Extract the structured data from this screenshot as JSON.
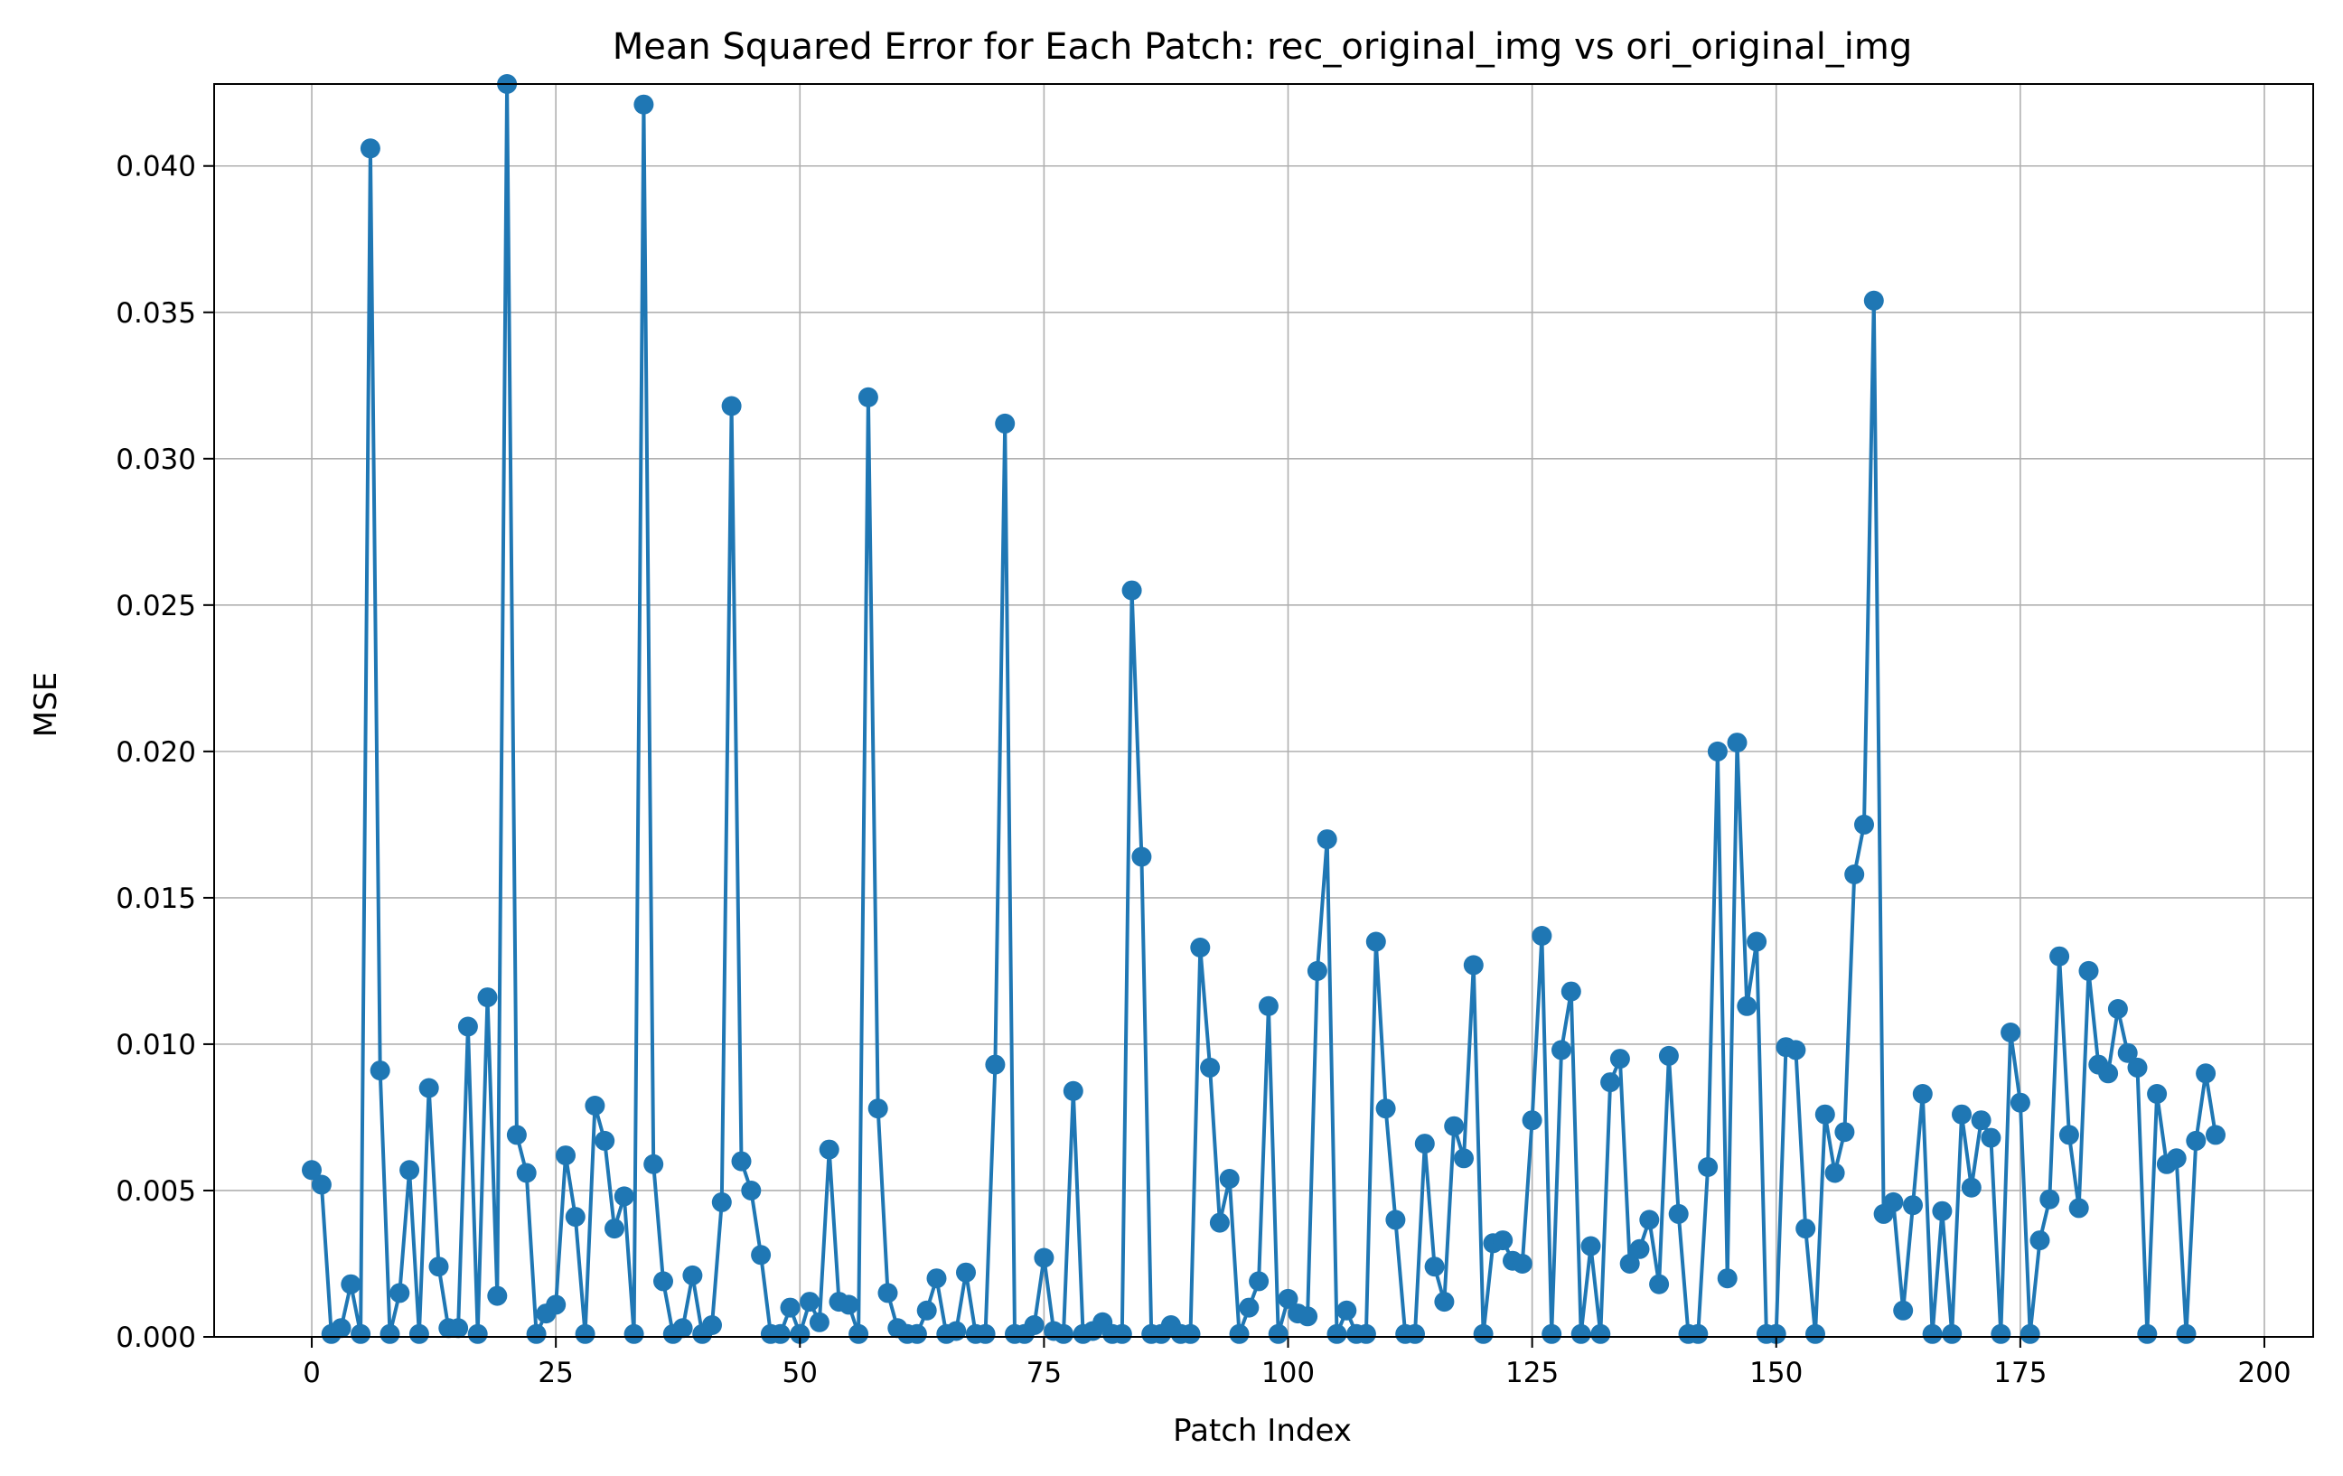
{
  "chart_data": {
    "type": "line",
    "title": "Mean Squared Error for Each Patch: rec_original_img vs ori_original_img",
    "xlabel": "Patch Index",
    "ylabel": "MSE",
    "xlim": [
      -10,
      205
    ],
    "ylim": [
      0,
      0.0428
    ],
    "xticks": [
      0,
      25,
      50,
      75,
      100,
      125,
      150,
      175,
      200
    ],
    "xtick_labels": [
      "0",
      "25",
      "50",
      "75",
      "100",
      "125",
      "150",
      "175",
      "200"
    ],
    "yticks": [
      0,
      0.005,
      0.01,
      0.015,
      0.02,
      0.025,
      0.03,
      0.035,
      0.04
    ],
    "ytick_labels": [
      "0.000",
      "0.005",
      "0.010",
      "0.015",
      "0.020",
      "0.025",
      "0.030",
      "0.035",
      "0.040"
    ],
    "grid": true,
    "marker": "circle",
    "color": "#1f77b4",
    "series": [
      {
        "values": [
          0.0057,
          0.0052,
          0.0001,
          0.0003,
          0.0018,
          0.0001,
          0.0406,
          0.0091,
          0.0001,
          0.0015,
          0.0057,
          0.0001,
          0.0085,
          0.0024,
          0.0003,
          0.0003,
          0.0106,
          0.0001,
          0.0116,
          0.0014,
          0.0428,
          0.0069,
          0.0056,
          0.0001,
          0.0008,
          0.0011,
          0.0062,
          0.0041,
          0.0001,
          0.0079,
          0.0067,
          0.0037,
          0.0048,
          0.0001,
          0.0421,
          0.0059,
          0.0019,
          0.0001,
          0.0003,
          0.0021,
          0.0001,
          0.0004,
          0.0046,
          0.0318,
          0.006,
          0.005,
          0.0028,
          0.0001,
          0.0001,
          0.001,
          0.0001,
          0.0012,
          0.0005,
          0.0064,
          0.0012,
          0.0011,
          0.0001,
          0.0321,
          0.0078,
          0.0015,
          0.0003,
          0.0001,
          0.0001,
          0.0009,
          0.002,
          0.0001,
          0.0002,
          0.0022,
          0.0001,
          0.0001,
          0.0093,
          0.0312,
          0.0001,
          0.0001,
          0.0004,
          0.0027,
          0.0002,
          0.0001,
          0.0084,
          0.0001,
          0.0002,
          0.0005,
          0.0001,
          0.0001,
          0.0255,
          0.0164,
          0.0001,
          0.0001,
          0.0004,
          0.0001,
          0.0001,
          0.0133,
          0.0092,
          0.0039,
          0.0054,
          0.0001,
          0.001,
          0.0019,
          0.0113,
          0.0001,
          0.0013,
          0.0008,
          0.0007,
          0.0125,
          0.017,
          0.0001,
          0.0009,
          0.0001,
          0.0001,
          0.0135,
          0.0078,
          0.004,
          0.0001,
          0.0001,
          0.0066,
          0.0024,
          0.0012,
          0.0072,
          0.0061,
          0.0127,
          0.0001,
          0.0032,
          0.0033,
          0.0026,
          0.0025,
          0.0074,
          0.0137,
          0.0001,
          0.0098,
          0.0118,
          0.0001,
          0.0031,
          0.0001,
          0.0087,
          0.0095,
          0.0025,
          0.003,
          0.004,
          0.0018,
          0.0096,
          0.0042,
          0.0001,
          0.0001,
          0.0058,
          0.02,
          0.002,
          0.0203,
          0.0113,
          0.0135,
          0.0001,
          0.0001,
          0.0099,
          0.0098,
          0.0037,
          0.0001,
          0.0076,
          0.0056,
          0.007,
          0.0158,
          0.0175,
          0.0354,
          0.0042,
          0.0046,
          0.0009,
          0.0045,
          0.0083,
          0.0001,
          0.0043,
          0.0001,
          0.0076,
          0.0051,
          0.0074,
          0.0068,
          0.0001,
          0.0104,
          0.008,
          0.0001,
          0.0033,
          0.0047,
          0.013,
          0.0069,
          0.0044,
          0.0125,
          0.0093,
          0.009,
          0.0112,
          0.0097,
          0.0092,
          0.0001,
          0.0083,
          0.0059,
          0.0061,
          0.0001,
          0.0067,
          0.009,
          0.0069
        ]
      }
    ]
  }
}
